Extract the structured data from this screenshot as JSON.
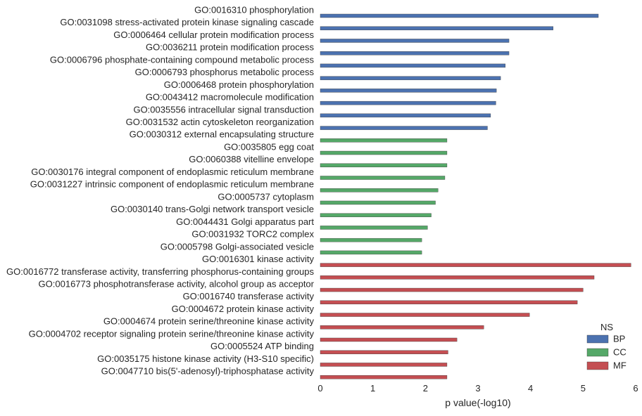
{
  "chart_data": {
    "type": "bar",
    "orientation": "horizontal",
    "xlabel": "p value(-log10)",
    "ylabel": "",
    "xlim": [
      0,
      6
    ],
    "xticks": [
      0,
      1,
      2,
      3,
      4,
      5,
      6
    ],
    "grid": false,
    "legend": {
      "title": "NS",
      "placement": "bottom-right"
    },
    "series": [
      {
        "name": "BP",
        "color": "#4C72B0",
        "categories": [
          "GO:0016310 phosphorylation",
          "GO:0031098 stress-activated protein kinase signaling cascade",
          "GO:0006464 cellular protein modification process",
          "GO:0036211 protein modification process",
          "GO:0006796 phosphate-containing compound metabolic process",
          "GO:0006793 phosphorus metabolic process",
          "GO:0006468 protein phosphorylation",
          "GO:0043412 macromolecule modification",
          "GO:0035556 intracellular signal transduction",
          "GO:0031532 actin cytoskeleton reorganization"
        ],
        "values": [
          5.29,
          4.43,
          3.59,
          3.59,
          3.52,
          3.43,
          3.35,
          3.34,
          3.24,
          3.18
        ]
      },
      {
        "name": "CC",
        "color": "#55A868",
        "categories": [
          "GO:0030312 external encapsulating structure",
          "GO:0035805 egg coat",
          "GO:0060388 vitelline envelope",
          "GO:0030176 integral component of endoplasmic reticulum membrane",
          "GO:0031227 intrinsic component of endoplasmic reticulum membrane",
          "GO:0005737 cytoplasm",
          "GO:0030140 trans-Golgi network transport vesicle",
          "GO:0044431 Golgi apparatus part",
          "GO:0031932 TORC2 complex",
          "GO:0005798 Golgi-associated vesicle"
        ],
        "values": [
          2.41,
          2.41,
          2.41,
          2.37,
          2.24,
          2.19,
          2.11,
          2.04,
          1.93,
          1.93
        ]
      },
      {
        "name": "MF",
        "color": "#C44E52",
        "categories": [
          "GO:0016301 kinase activity",
          "GO:0016772 transferase activity, transferring phosphorus-containing groups",
          "GO:0016773 phosphotransferase activity, alcohol group as acceptor",
          "GO:0016740 transferase activity",
          "GO:0004672 protein kinase activity",
          "GO:0004674 protein serine/threonine kinase activity",
          "GO:0004702 receptor signaling protein serine/threonine kinase activity",
          "GO:0005524 ATP binding",
          "GO:0035175 histone kinase activity (H3-S10 specific)",
          "GO:0047710 bis(5'-adenosyl)-triphosphatase activity"
        ],
        "values": [
          5.91,
          5.21,
          5.0,
          4.89,
          3.98,
          3.11,
          2.6,
          2.43,
          2.41,
          2.41
        ]
      }
    ]
  }
}
